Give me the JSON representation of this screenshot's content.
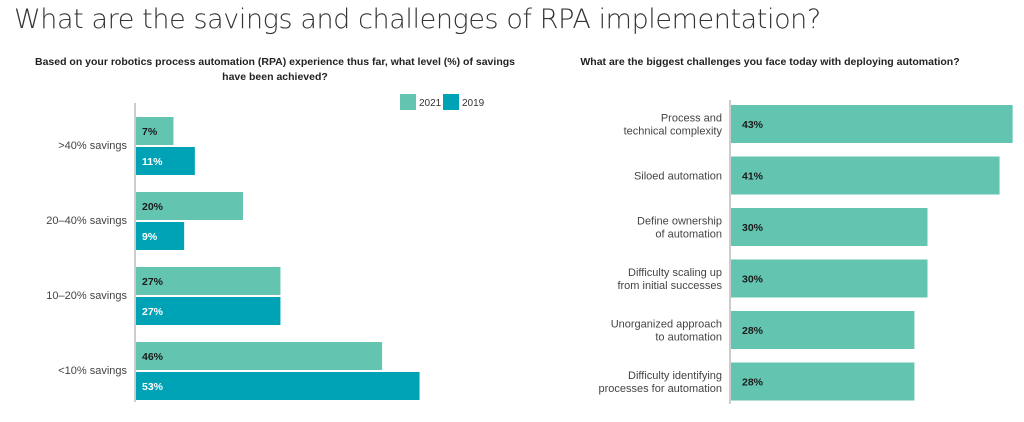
{
  "title": "What are the savings and challenges of RPA implementation?",
  "colors": {
    "y2021": "#63c5b0",
    "y2019": "#00a3b5",
    "label_dark": "#1b1b1b",
    "label_light": "#ffffff"
  },
  "chart_data": [
    {
      "type": "bar",
      "orientation": "horizontal",
      "title": "Based on your robotics process automation (RPA) experience thus far, what level (%) of savings have been achieved?",
      "categories": [
        ">40% savings",
        "20–40% savings",
        "10–20% savings",
        "<10% savings"
      ],
      "series": [
        {
          "name": "2021",
          "values": [
            7,
            20,
            27,
            46
          ],
          "labels": [
            "7%",
            "20%",
            "27%",
            "46%"
          ]
        },
        {
          "name": "2019",
          "values": [
            11,
            9,
            27,
            53
          ],
          "labels": [
            "11%",
            "9%",
            "27%",
            "53%"
          ]
        }
      ],
      "xlim": [
        0,
        100
      ],
      "legend": "top-right",
      "grid": false
    },
    {
      "type": "bar",
      "orientation": "horizontal",
      "title": "What are the biggest challenges you face today with deploying automation?",
      "categories": [
        [
          "Process and",
          "technical complexity"
        ],
        [
          "Siloed automation"
        ],
        [
          "Define ownership",
          "of automation"
        ],
        [
          "Difficulty scaling up",
          "from initial successes"
        ],
        [
          "Unorganized approach",
          "to automation"
        ],
        [
          "Difficulty identifying",
          "processes for automation"
        ]
      ],
      "values": [
        43,
        41,
        30,
        30,
        28,
        28
      ],
      "labels": [
        "43%",
        "41%",
        "30%",
        "30%",
        "28%",
        "28%"
      ],
      "xlim": [
        0,
        50
      ],
      "grid": false
    }
  ]
}
